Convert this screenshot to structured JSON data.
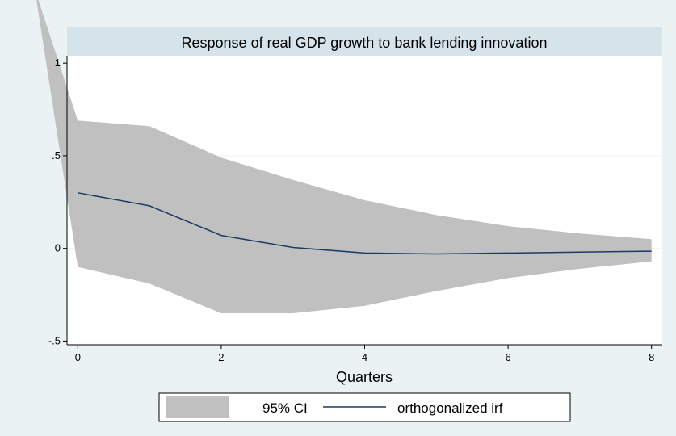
{
  "chart_data": {
    "type": "area",
    "title": "Response of real GDP growth to bank lending innovation",
    "xlabel": "Quarters",
    "ylabel": "",
    "xlim": [
      -0.15,
      8.15
    ],
    "ylim": [
      -0.52,
      1.04
    ],
    "x_ticks": [
      {
        "value": 0,
        "label": "0"
      },
      {
        "value": 2,
        "label": "2"
      },
      {
        "value": 4,
        "label": "4"
      },
      {
        "value": 6,
        "label": "6"
      },
      {
        "value": 8,
        "label": "8"
      }
    ],
    "y_ticks": [
      {
        "value": -0.5,
        "label": "-.5"
      },
      {
        "value": 0,
        "label": "0"
      },
      {
        "value": 0.5,
        "label": ".5"
      },
      {
        "value": 1,
        "label": "1"
      }
    ],
    "grid": true,
    "legend_position": "bottom",
    "x": [
      0,
      1,
      2,
      3,
      4,
      5,
      6,
      7,
      8
    ],
    "series": [
      {
        "name": "95% CI",
        "kind": "band",
        "upper": [
          0.69,
          0.66,
          0.49,
          0.37,
          0.26,
          0.18,
          0.12,
          0.08,
          0.05
        ],
        "lower": [
          -0.1,
          -0.19,
          -0.35,
          -0.35,
          -0.31,
          -0.23,
          -0.16,
          -0.11,
          -0.07
        ],
        "color": "#c0c0c0"
      },
      {
        "name": "orthogonalized irf",
        "kind": "line",
        "values": [
          0.3,
          0.23,
          0.07,
          0.005,
          -0.025,
          -0.03,
          -0.025,
          -0.02,
          -0.015
        ],
        "color": "#1a3b66"
      }
    ],
    "colors": {
      "background": "#eaf2f3",
      "plot_background": "#ffffff",
      "title_band": "#d5e3ea",
      "grid": "#eaf2f3"
    }
  }
}
